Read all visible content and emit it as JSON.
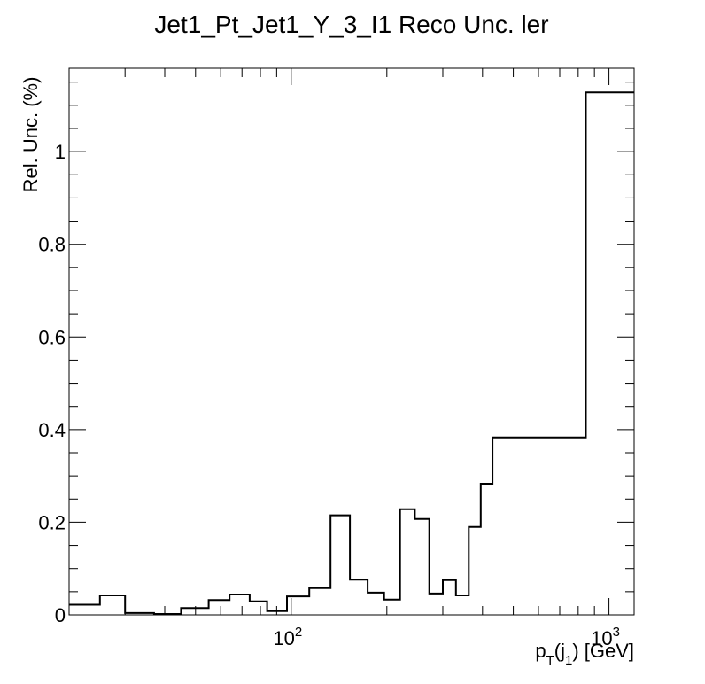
{
  "chart_data": {
    "type": "step",
    "title": "Jet1_Pt_Jet1_Y_3_I1 Reco Unc. ler",
    "xlabel": {
      "main": "p",
      "sub1": "T",
      "mid": "(j",
      "sub2": "1",
      "end": ") [GeV]"
    },
    "ylabel": "Rel. Unc. (%)",
    "xscale": "log",
    "xlim": [
      20,
      1200
    ],
    "ylim": [
      0,
      1.18
    ],
    "x_tick_labels": [
      {
        "base": "10",
        "exp": "2",
        "value": 100
      },
      {
        "base": "10",
        "exp": "3",
        "value": 1000
      }
    ],
    "y_tick_labels": [
      {
        "label": "0",
        "value": 0
      },
      {
        "label": "0.2",
        "value": 0.2
      },
      {
        "label": "0.4",
        "value": 0.4
      },
      {
        "label": "0.6",
        "value": 0.6
      },
      {
        "label": "0.8",
        "value": 0.8
      },
      {
        "label": "1",
        "value": 1.0
      }
    ],
    "bin_edges": [
      20,
      25,
      30,
      37,
      45,
      55,
      64,
      74,
      84,
      97,
      114,
      133,
      153,
      174,
      196,
      220,
      245,
      272,
      300,
      330,
      362,
      395,
      430,
      468,
      507,
      548,
      592,
      638,
      846,
      1200
    ],
    "values": [
      0.022,
      0.042,
      0.004,
      0.002,
      0.015,
      0.032,
      0.044,
      0.029,
      0.008,
      0.04,
      0.058,
      0.215,
      0.076,
      0.048,
      0.033,
      0.228,
      0.207,
      0.046,
      0.075,
      0.042,
      0.19,
      0.283,
      0.383,
      0.383,
      0.383,
      0.383,
      0.383,
      0.383,
      1.128
    ]
  }
}
